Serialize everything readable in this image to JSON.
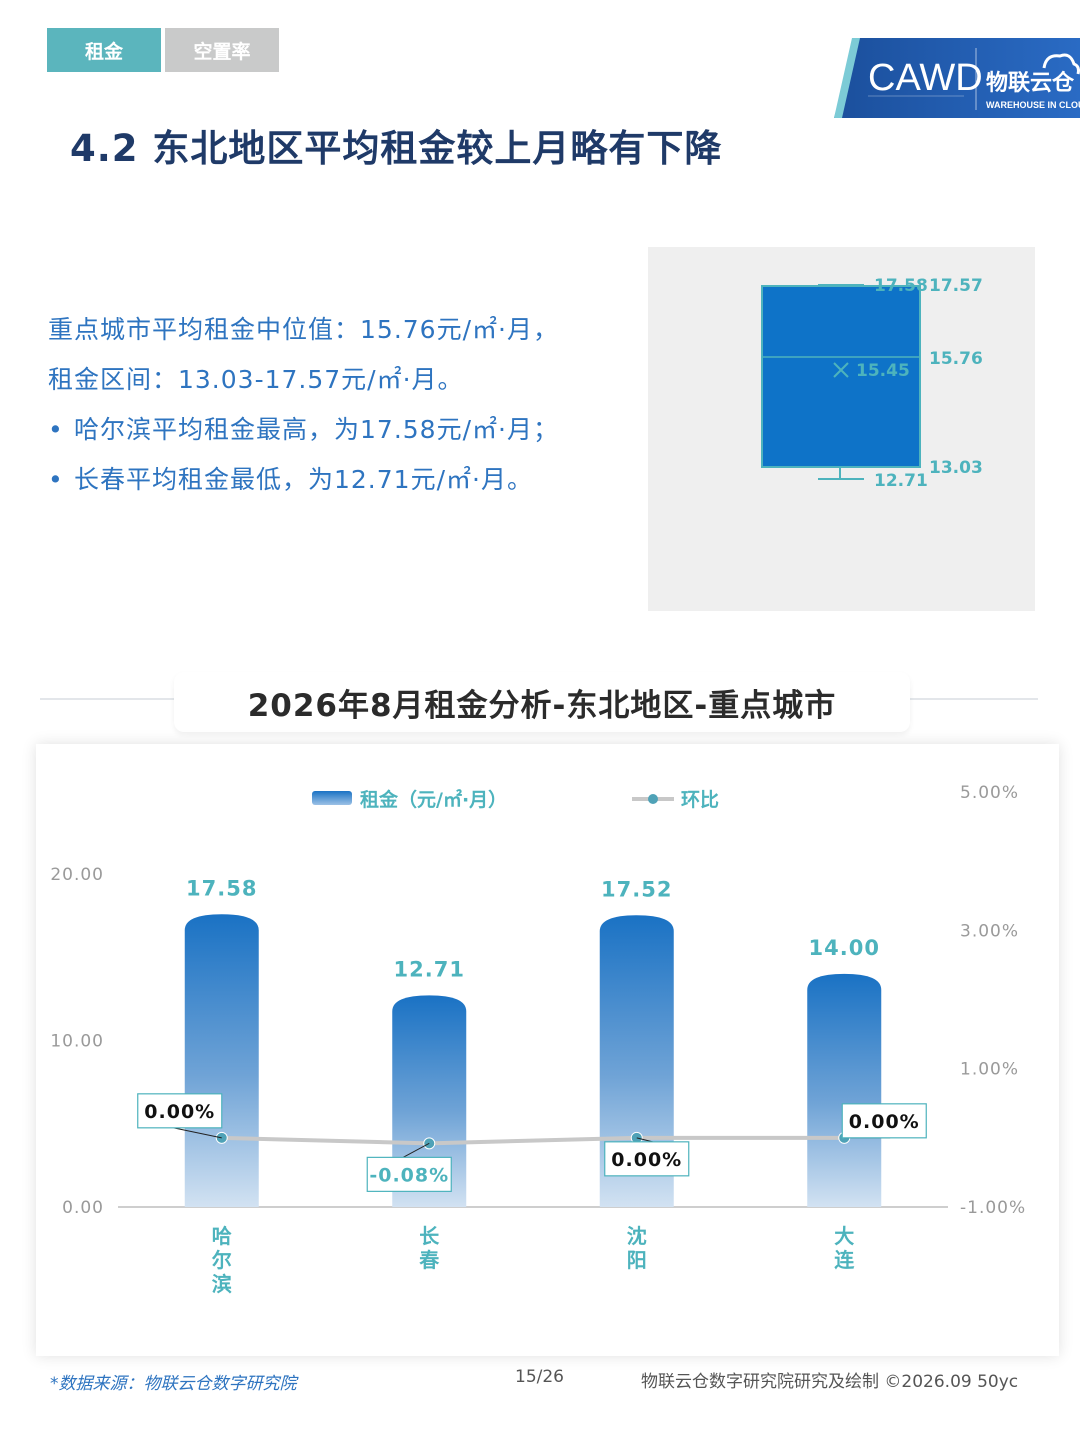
{
  "tabs": [
    {
      "label": "租金",
      "active": true
    },
    {
      "label": "空置率",
      "active": false
    }
  ],
  "logo": {
    "cawd": "CAWD",
    "brand": "物联云仓",
    "brand_sub": "WAREHOUSE IN CLOUD"
  },
  "page_title": "4.2 东北地区平均租金较上月略有下降",
  "summary": {
    "line1": "重点城市平均租金中位值：15.76元/㎡·月，",
    "line2": "租金区间：13.03-17.57元/㎡·月。",
    "bullets": [
      "哈尔滨平均租金最高，为17.58元/㎡·月；",
      "长春平均租金最低，为12.71元/㎡·月。"
    ]
  },
  "boxplot": {
    "max": "17.58",
    "q3": "17.57",
    "median": "15.76",
    "mean": "15.45",
    "q1": "13.03",
    "min": "12.71",
    "color": "#0e73c8"
  },
  "section_title": "2026年8月租金分析-东北地区-重点城市",
  "chart_data": {
    "type": "bar",
    "categories": [
      "哈尔滨",
      "长春",
      "沈阳",
      "大连"
    ],
    "series": [
      {
        "name": "租金（元/㎡·月）",
        "type": "bar",
        "values": [
          17.58,
          12.71,
          17.52,
          14.0
        ],
        "labels": [
          "17.58",
          "12.71",
          "17.52",
          "14.00"
        ]
      },
      {
        "name": "环比",
        "type": "line",
        "values": [
          0.0,
          -0.08,
          0.0,
          0.0
        ],
        "labels": [
          "0.00%",
          "-0.08%",
          "0.00%",
          "0.00%"
        ]
      }
    ],
    "ylim": [
      0,
      20
    ],
    "yticks": [
      "0.00",
      "10.00",
      "20.00"
    ],
    "y2lim": [
      -1,
      5
    ],
    "y2ticks": [
      "-1.00%",
      "1.00%",
      "3.00%",
      "5.00%"
    ],
    "legend_position": "top",
    "colors": {
      "bar": "#1a72c4",
      "line": "#c8c8c8",
      "point": "#4fa2b7",
      "label": "#4db3bd"
    }
  },
  "footer": {
    "source": "*数据来源：物联云仓数字研究院",
    "page": "15/26",
    "credit": "物联云仓数字研究院研究及绘制    ©2026.09 50yc"
  }
}
